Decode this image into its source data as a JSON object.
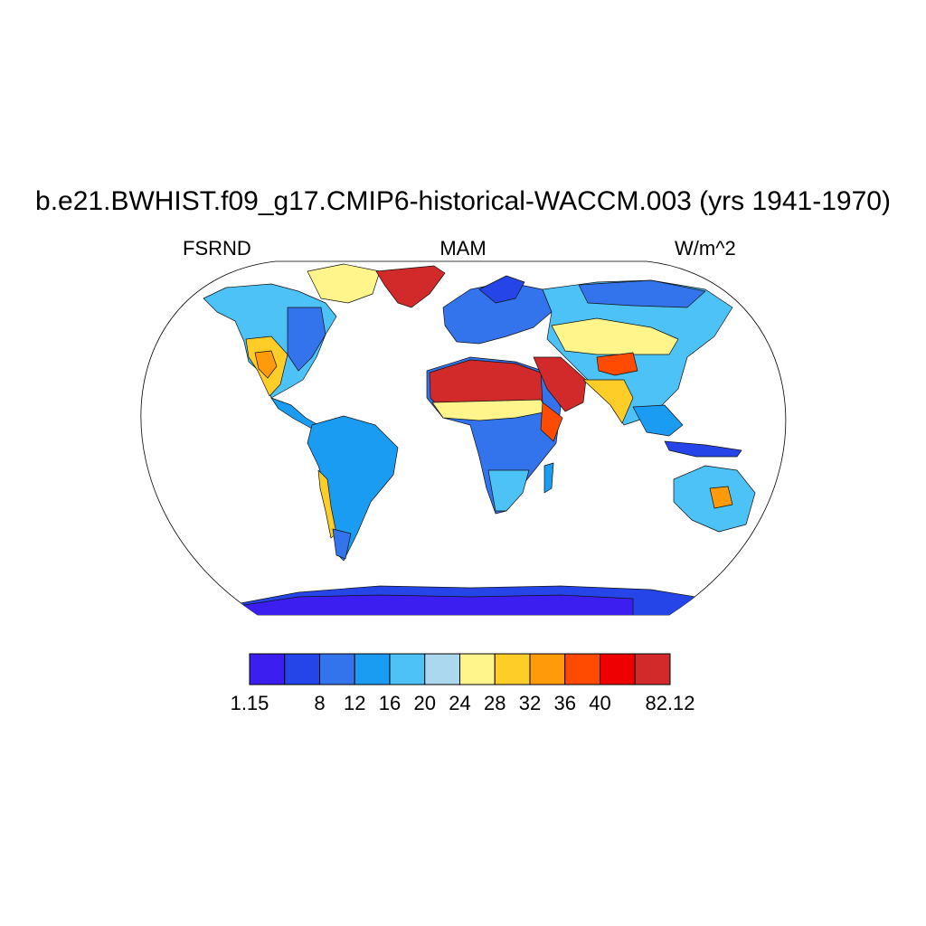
{
  "title": "b.e21.BWHIST.f09_g17.CMIP6-historical-WACCM.003 (yrs 1941-1970)",
  "subtitle_left": "FSRND",
  "subtitle_center": "MAM",
  "subtitle_right": "W/m^2",
  "map": {
    "projection": "robinson",
    "coastlines": true,
    "ocean": "blank"
  },
  "colorbar": {
    "colors": [
      "#3c1ff0",
      "#2645e8",
      "#3373ec",
      "#1a9cf2",
      "#4cc2f6",
      "#abd8ef",
      "#fff58a",
      "#ffcd28",
      "#ff9a0a",
      "#ff4a00",
      "#ee0000",
      "#d22a2a"
    ],
    "labels": [
      "1.15",
      "",
      "8",
      "12",
      "16",
      "20",
      "24",
      "28",
      "32",
      "36",
      "40",
      "",
      "82.12"
    ]
  }
}
